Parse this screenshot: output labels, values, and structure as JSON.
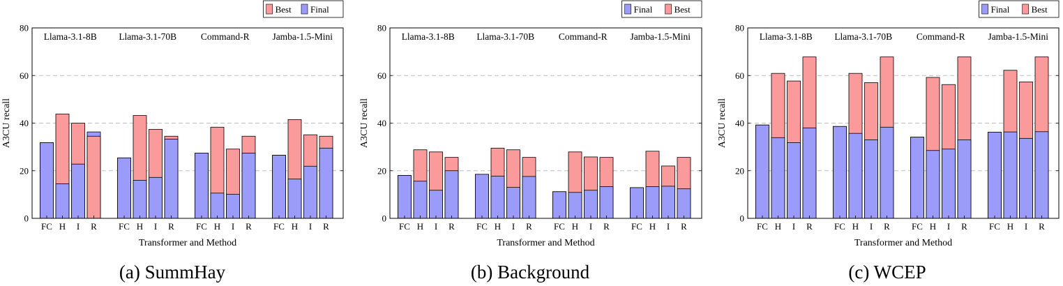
{
  "colors": {
    "final": "#9b9bf9",
    "best": "#fa9a9a",
    "grid": "#bdbdbd",
    "frame": "#000000"
  },
  "chart_data": [
    {
      "type": "bar",
      "stacked": true,
      "caption": "(a) SummHay",
      "xlabel": "Transformer and Method",
      "ylabel": "A3CU recall",
      "ylim": [
        0,
        80
      ],
      "yticks": [
        0,
        20,
        40,
        60,
        80
      ],
      "grid": "horizontal dashed",
      "legend_position": "top-right",
      "legend": [
        "Best",
        "Final"
      ],
      "groups": [
        "Llama-3.1-8B",
        "Llama-3.1-70B",
        "Command-R",
        "Jamba-1.5-Mini"
      ],
      "methods": [
        "FC",
        "H",
        "I",
        "R"
      ],
      "series": [
        {
          "name": "Final",
          "values": [
            [
              31.8,
              14.5,
              22.8,
              36.3
            ],
            [
              25.4,
              16.0,
              17.2,
              33.3
            ],
            [
              27.4,
              10.6,
              10.1,
              27.4
            ],
            [
              26.5,
              16.5,
              21.9,
              29.5
            ]
          ]
        },
        {
          "name": "Best",
          "values": [
            [
              31.8,
              43.8,
              40.0,
              34.5
            ],
            [
              25.4,
              43.2,
              37.4,
              34.5
            ],
            [
              27.4,
              38.3,
              29.1,
              34.5
            ],
            [
              26.5,
              41.5,
              35.1,
              34.5
            ]
          ]
        }
      ]
    },
    {
      "type": "bar",
      "stacked": true,
      "caption": "(b) Background",
      "xlabel": "Transformer and Method",
      "ylabel": "A3CU recall",
      "ylim": [
        0,
        80
      ],
      "yticks": [
        0,
        20,
        40,
        60,
        80
      ],
      "grid": "horizontal dashed",
      "legend_position": "top-right",
      "legend": [
        "Final",
        "Best"
      ],
      "groups": [
        "Llama-3.1-8B",
        "Llama-3.1-70B",
        "Command-R",
        "Jamba-1.5-Mini"
      ],
      "methods": [
        "FC",
        "H",
        "I",
        "R"
      ],
      "series": [
        {
          "name": "Final",
          "values": [
            [
              18.0,
              15.6,
              11.8,
              20.0
            ],
            [
              18.5,
              17.7,
              13.0,
              17.6
            ],
            [
              11.2,
              10.9,
              11.8,
              13.3
            ],
            [
              12.9,
              13.3,
              13.5,
              12.4
            ]
          ]
        },
        {
          "name": "Best",
          "values": [
            [
              18.0,
              28.8,
              27.9,
              25.6
            ],
            [
              18.5,
              29.5,
              28.8,
              25.6
            ],
            [
              11.2,
              27.9,
              25.8,
              25.6
            ],
            [
              12.9,
              28.2,
              22.0,
              25.6
            ]
          ]
        }
      ]
    },
    {
      "type": "bar",
      "stacked": true,
      "caption": "(c) WCEP",
      "xlabel": "Transformer and Method",
      "ylabel": "A3CU recall",
      "ylim": [
        0,
        80
      ],
      "yticks": [
        0,
        20,
        40,
        60,
        80
      ],
      "grid": "horizontal dashed",
      "legend_position": "top-right",
      "legend": [
        "Final",
        "Best"
      ],
      "groups": [
        "Llama-3.1-8B",
        "Llama-3.1-70B",
        "Command-R",
        "Jamba-1.5-Mini"
      ],
      "methods": [
        "FC",
        "H",
        "I",
        "R"
      ],
      "series": [
        {
          "name": "Final",
          "values": [
            [
              39.2,
              33.9,
              31.8,
              38.0
            ],
            [
              38.6,
              35.7,
              33.0,
              38.3
            ],
            [
              34.1,
              28.5,
              29.1,
              33.0
            ],
            [
              36.2,
              36.3,
              33.6,
              36.4
            ]
          ]
        },
        {
          "name": "Best",
          "values": [
            [
              39.2,
              60.9,
              57.7,
              67.8
            ],
            [
              38.6,
              60.9,
              57.0,
              67.8
            ],
            [
              34.1,
              59.2,
              56.2,
              67.8
            ],
            [
              36.2,
              62.2,
              57.3,
              67.8
            ]
          ]
        }
      ]
    }
  ]
}
